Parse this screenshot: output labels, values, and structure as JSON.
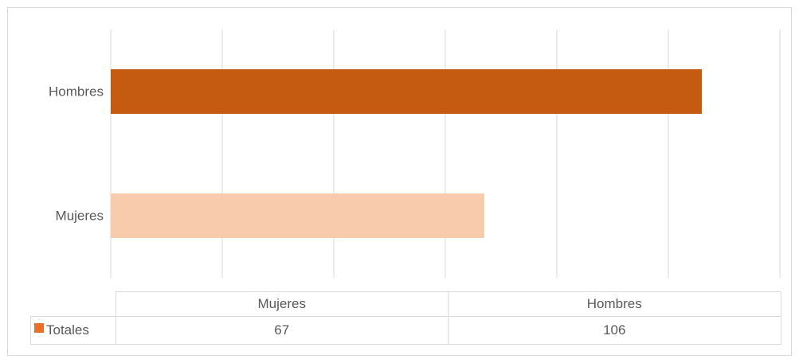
{
  "chart_data": {
    "type": "bar",
    "orientation": "horizontal",
    "categories": [
      "Mujeres",
      "Hombres"
    ],
    "series": [
      {
        "name": "Totales",
        "color": "#e8702a",
        "point_colors": [
          "#f8cbad",
          "#c55a11"
        ],
        "values": [
          67,
          106
        ]
      }
    ],
    "xlim": [
      0,
      120
    ],
    "xticks": [
      0,
      20,
      40,
      60,
      80,
      100,
      120
    ],
    "grid": true,
    "data_table": true
  }
}
